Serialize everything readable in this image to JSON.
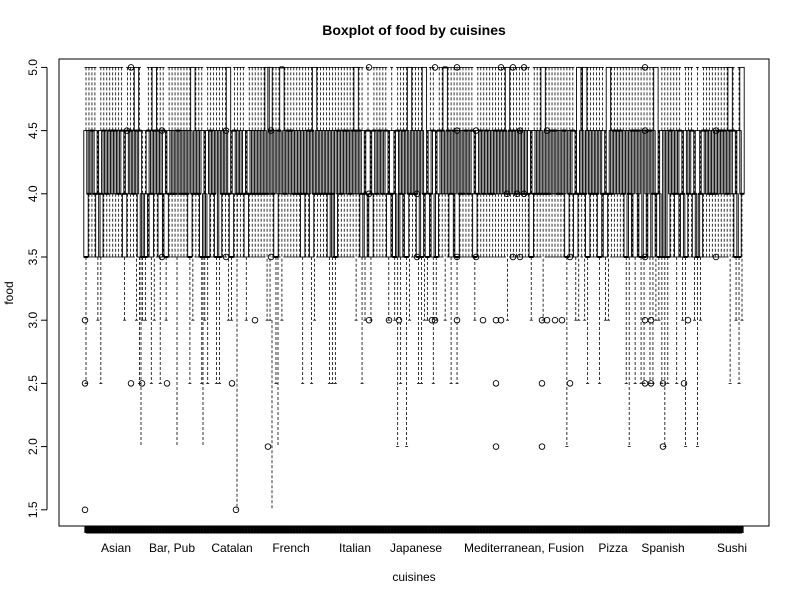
{
  "chart_data": {
    "type": "box",
    "title": "Boxplot of food by cuisines",
    "xlabel": "cuisines",
    "ylabel": "food",
    "ylim": [
      1.4,
      5.13
    ],
    "yticks": [
      "1.5",
      "2.0",
      "2.5",
      "3.0",
      "3.5",
      "4.0",
      "4.5",
      "5.0"
    ],
    "categories": [
      "Asian",
      "Bar, Pub",
      "Catalan",
      "French",
      "Italian",
      "Japanese",
      "Mediterranean, Fusion",
      "Pizza",
      "Spanish",
      "Sushi"
    ],
    "box_count": 222,
    "outlier_groups": [
      {
        "x": 85,
        "values": [
          3.0,
          2.5,
          1.5
        ]
      },
      {
        "x": 127,
        "values": [
          4.5
        ]
      },
      {
        "x": 131,
        "values": [
          5.0,
          2.5
        ]
      },
      {
        "x": 142,
        "values": [
          2.5
        ]
      },
      {
        "x": 162,
        "values": [
          4.5,
          3.5
        ]
      },
      {
        "x": 167,
        "values": [
          2.5
        ]
      },
      {
        "x": 226,
        "values": [
          4.5,
          3.5
        ]
      },
      {
        "x": 232,
        "values": [
          2.5
        ]
      },
      {
        "x": 236,
        "values": [
          1.5
        ]
      },
      {
        "x": 255,
        "values": [
          3.0
        ]
      },
      {
        "x": 268,
        "values": [
          2.0
        ]
      },
      {
        "x": 271,
        "values": [
          4.5,
          3.5
        ]
      },
      {
        "x": 369,
        "values": [
          5.0,
          4.0,
          3.0
        ]
      },
      {
        "x": 389,
        "values": [
          3.0
        ]
      },
      {
        "x": 399,
        "values": [
          3.0
        ]
      },
      {
        "x": 417,
        "values": [
          4.0,
          3.5
        ]
      },
      {
        "x": 432,
        "values": [
          3.0
        ]
      },
      {
        "x": 435,
        "values": [
          5.0,
          3.0
        ]
      },
      {
        "x": 457,
        "values": [
          5.0,
          4.5,
          3.5,
          3.0
        ]
      },
      {
        "x": 476,
        "values": [
          4.5,
          3.5
        ]
      },
      {
        "x": 483,
        "values": [
          3.0
        ]
      },
      {
        "x": 496,
        "values": [
          3.0,
          2.5,
          2.0
        ]
      },
      {
        "x": 501,
        "values": [
          5.0,
          3.0
        ]
      },
      {
        "x": 507,
        "values": [
          4.0
        ]
      },
      {
        "x": 513,
        "values": [
          5.0,
          3.5
        ]
      },
      {
        "x": 517,
        "values": [
          4.0
        ]
      },
      {
        "x": 520,
        "values": [
          4.5,
          3.5
        ]
      },
      {
        "x": 524,
        "values": [
          5.0,
          4.0
        ]
      },
      {
        "x": 542,
        "values": [
          3.0,
          2.5,
          2.0
        ]
      },
      {
        "x": 547,
        "values": [
          4.5,
          3.0
        ]
      },
      {
        "x": 555,
        "values": [
          3.0
        ]
      },
      {
        "x": 562,
        "values": [
          3.0
        ]
      },
      {
        "x": 570,
        "values": [
          3.5,
          2.5
        ]
      },
      {
        "x": 645,
        "values": [
          5.0,
          4.5,
          3.5,
          3.0,
          2.5
        ]
      },
      {
        "x": 651,
        "values": [
          3.0,
          2.5
        ]
      },
      {
        "x": 663,
        "values": [
          2.5,
          2.0
        ]
      },
      {
        "x": 684,
        "values": [
          2.5
        ]
      },
      {
        "x": 688,
        "values": [
          3.0
        ]
      },
      {
        "x": 716,
        "values": [
          4.5,
          3.5
        ]
      }
    ]
  }
}
